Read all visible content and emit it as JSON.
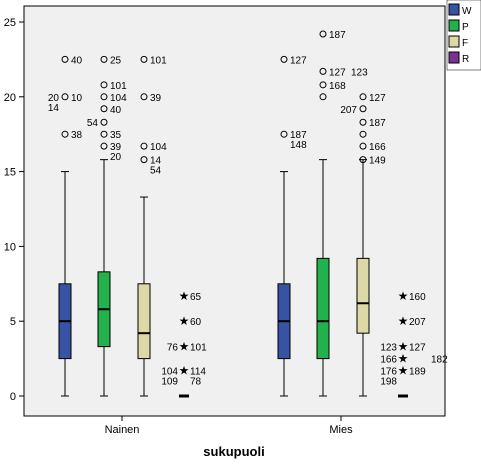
{
  "chart_data": {
    "type": "boxplot",
    "xlabel": "sukupuoli",
    "ylabel": "",
    "ylim": [
      -1,
      26
    ],
    "yticks": [
      0,
      5,
      10,
      15,
      20,
      25
    ],
    "grid": false,
    "legend_position": "top-right",
    "categories": [
      "Nainen",
      "Mies"
    ],
    "series": [
      {
        "name": "W",
        "color": "#3953a4"
      },
      {
        "name": "P",
        "color": "#22b14c"
      },
      {
        "name": "F",
        "color": "#ddd9a6"
      },
      {
        "name": "R",
        "color": "#7b3294"
      }
    ],
    "boxes": [
      {
        "category": "Nainen",
        "series": "W",
        "whisker_low": 0,
        "q1": 2.5,
        "median": 5,
        "q3": 7.5,
        "whisker_high": 15
      },
      {
        "category": "Nainen",
        "series": "P",
        "whisker_low": 0,
        "q1": 3.3,
        "median": 5.8,
        "q3": 8.3,
        "whisker_high": 15.8
      },
      {
        "category": "Nainen",
        "series": "F",
        "whisker_low": 0,
        "q1": 2.5,
        "median": 4.2,
        "q3": 7.5,
        "whisker_high": 13.3
      },
      {
        "category": "Nainen",
        "series": "R",
        "whisker_low": 0,
        "q1": 0,
        "median": 0,
        "q3": 0,
        "whisker_high": 0
      },
      {
        "category": "Mies",
        "series": "W",
        "whisker_low": 0,
        "q1": 2.5,
        "median": 5,
        "q3": 7.5,
        "whisker_high": 15
      },
      {
        "category": "Mies",
        "series": "P",
        "whisker_low": 0,
        "q1": 2.5,
        "median": 5,
        "q3": 9.2,
        "whisker_high": 15.8
      },
      {
        "category": "Mies",
        "series": "F",
        "whisker_low": 0,
        "q1": 4.2,
        "median": 6.2,
        "q3": 9.2,
        "whisker_high": 15.8
      },
      {
        "category": "Mies",
        "series": "R",
        "whisker_low": 0,
        "q1": 0,
        "median": 0,
        "q3": 0,
        "whisker_high": 0
      }
    ],
    "outliers": [
      {
        "category": "Nainen",
        "series": "W",
        "kind": "circle",
        "points": [
          {
            "y": 22.5,
            "label": "40",
            "side": "right"
          },
          {
            "y": 20,
            "label": "20",
            "side": "left"
          },
          {
            "y": 20,
            "label": "10",
            "side": "right"
          },
          {
            "y": 20,
            "label": "14",
            "side": "left-below"
          },
          {
            "y": 17.5,
            "label": "38",
            "side": "right"
          }
        ]
      },
      {
        "category": "Nainen",
        "series": "P",
        "kind": "circle",
        "points": [
          {
            "y": 22.5,
            "label": "25",
            "side": "right"
          },
          {
            "y": 20.8,
            "label": "101",
            "side": "right"
          },
          {
            "y": 20,
            "label": "104",
            "side": "right"
          },
          {
            "y": 19.2,
            "label": "40",
            "side": "right"
          },
          {
            "y": 18.3,
            "label": "54",
            "side": "left"
          },
          {
            "y": 17.5,
            "label": "35",
            "side": "right"
          },
          {
            "y": 16.7,
            "label": "39",
            "side": "right"
          },
          {
            "y": 16.7,
            "label": "20",
            "side": "right-below"
          }
        ]
      },
      {
        "category": "Nainen",
        "series": "F",
        "kind": "circle",
        "points": [
          {
            "y": 22.5,
            "label": "101",
            "side": "right"
          },
          {
            "y": 20,
            "label": "39",
            "side": "right"
          },
          {
            "y": 16.7,
            "label": "104",
            "side": "right"
          },
          {
            "y": 15.8,
            "label": "14",
            "side": "right"
          },
          {
            "y": 15.8,
            "label": "54",
            "side": "right-below"
          }
        ]
      },
      {
        "category": "Nainen",
        "series": "R",
        "kind": "star",
        "points": [
          {
            "y": 6.7,
            "label": "65",
            "side": "right"
          },
          {
            "y": 5,
            "label": "60",
            "side": "right"
          },
          {
            "y": 3.3,
            "label": "76",
            "side": "left"
          },
          {
            "y": 3.3,
            "label": "101",
            "side": "right"
          },
          {
            "y": 1.7,
            "label": "104",
            "side": "left"
          },
          {
            "y": 1.7,
            "label": "114",
            "side": "right"
          },
          {
            "y": 1.7,
            "label": "109",
            "side": "left-below"
          },
          {
            "y": 1.7,
            "label": "78",
            "side": "right-below"
          }
        ]
      },
      {
        "category": "Mies",
        "series": "W",
        "kind": "circle",
        "points": [
          {
            "y": 22.5,
            "label": "127",
            "side": "right"
          },
          {
            "y": 17.5,
            "label": "187",
            "side": "right"
          },
          {
            "y": 17.5,
            "label": "148",
            "side": "right-below"
          }
        ]
      },
      {
        "category": "Mies",
        "series": "P",
        "kind": "circle",
        "points": [
          {
            "y": 24.2,
            "label": "187",
            "side": "right"
          },
          {
            "y": 21.7,
            "label": "127",
            "side": "right"
          },
          {
            "y": 21.7,
            "label": "123",
            "side": "far-right"
          },
          {
            "y": 20.8,
            "label": "168",
            "side": "right"
          },
          {
            "y": 20,
            "label": "",
            "side": "right"
          }
        ]
      },
      {
        "category": "Mies",
        "series": "F",
        "kind": "circle",
        "points": [
          {
            "y": 20,
            "label": "127",
            "side": "right"
          },
          {
            "y": 19.2,
            "label": "207",
            "side": "left"
          },
          {
            "y": 18.3,
            "label": "187",
            "side": "right"
          },
          {
            "y": 17.5,
            "label": "",
            "side": "right"
          },
          {
            "y": 16.7,
            "label": "166",
            "side": "right"
          },
          {
            "y": 15.8,
            "label": "149",
            "side": "right"
          }
        ]
      },
      {
        "category": "Mies",
        "series": "R",
        "kind": "star",
        "points": [
          {
            "y": 6.7,
            "label": "160",
            "side": "right"
          },
          {
            "y": 5,
            "label": "207",
            "side": "right"
          },
          {
            "y": 3.3,
            "label": "123",
            "side": "left"
          },
          {
            "y": 3.3,
            "label": "127",
            "side": "right"
          },
          {
            "y": 2.5,
            "label": "166",
            "side": "left"
          },
          {
            "y": 2.5,
            "label": "182",
            "side": "far-right"
          },
          {
            "y": 1.7,
            "label": "176",
            "side": "left"
          },
          {
            "y": 1.7,
            "label": "189",
            "side": "right"
          },
          {
            "y": 1.7,
            "label": "198",
            "side": "left-below"
          }
        ]
      }
    ]
  }
}
